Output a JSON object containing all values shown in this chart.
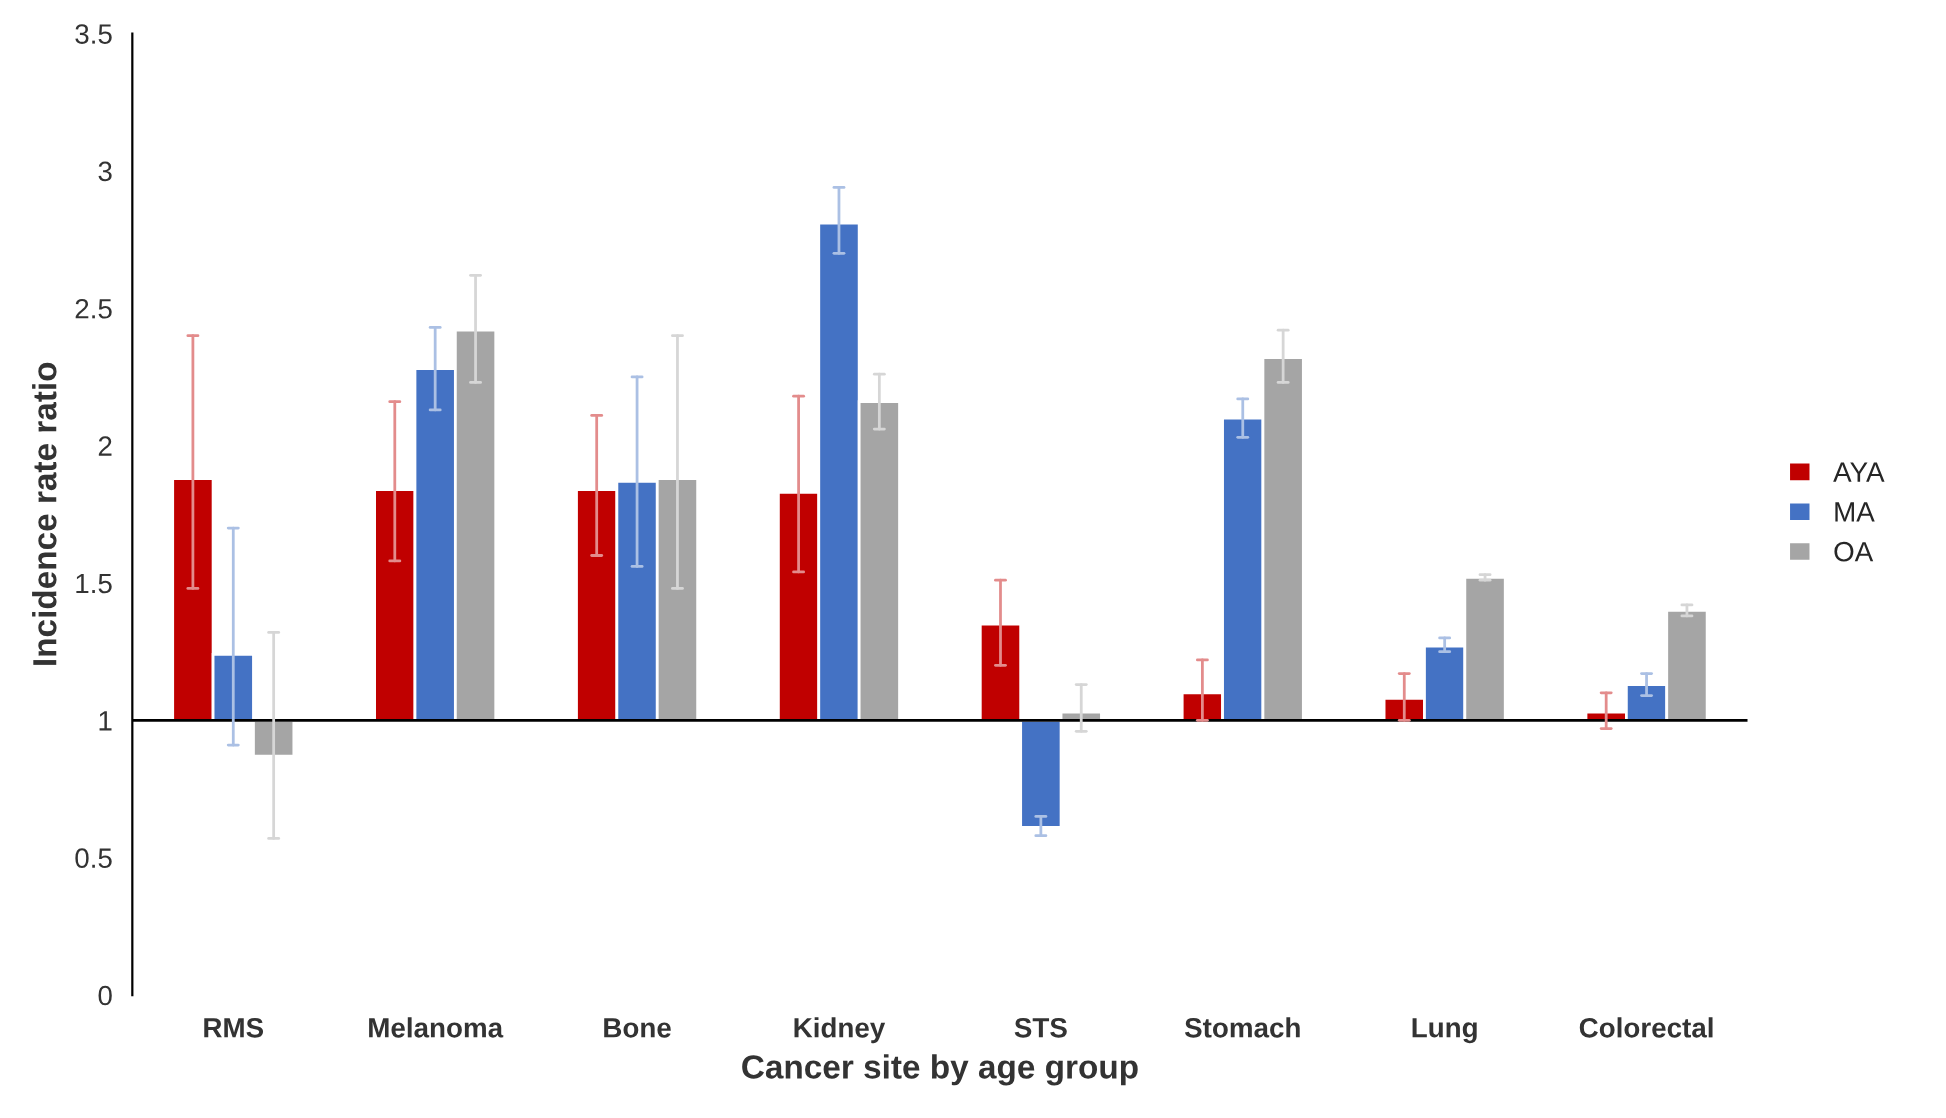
{
  "chart_data": {
    "type": "bar",
    "xlabel": "Cancer site by age group",
    "ylabel": "Incidence rate ratio",
    "categories": [
      "RMS",
      "Melanoma",
      "Bone",
      "Kidney",
      "STS",
      "Stomach",
      "Lung",
      "Colorectal"
    ],
    "ref_lines": [
      {
        "axis": "y",
        "value": 1,
        "color": "#000000"
      }
    ],
    "series": [
      {
        "name": "AYA",
        "color": "#c00000",
        "base": [
          1,
          1,
          1,
          1,
          1,
          1,
          1,
          1
        ],
        "values": [
          0.88,
          0.84,
          0.84,
          0.83,
          0.35,
          0.1,
          0.08,
          0.03
        ],
        "errors": [
          [
            1.48,
            2.4
          ],
          [
            1.58,
            2.16
          ],
          [
            1.6,
            2.11
          ],
          [
            1.54,
            2.18
          ],
          [
            1.2,
            1.51
          ],
          [
            1.0,
            1.22
          ],
          [
            1.0,
            1.17
          ],
          [
            0.97,
            1.1
          ]
        ]
      },
      {
        "name": "MA",
        "color": "#4472c4",
        "base": [
          1,
          1,
          1,
          1,
          1,
          1,
          1,
          1
        ],
        "values": [
          0.24,
          1.28,
          0.87,
          1.81,
          -0.39,
          1.1,
          0.27,
          0.13
        ],
        "errors": [
          [
            0.91,
            1.7
          ],
          [
            2.13,
            2.43
          ],
          [
            1.56,
            2.25
          ],
          [
            2.7,
            2.94
          ],
          [
            0.58,
            0.65
          ],
          [
            2.03,
            2.17
          ],
          [
            1.25,
            1.3
          ],
          [
            1.09,
            1.17
          ]
        ]
      },
      {
        "name": "OA",
        "color": "#a5a5a5",
        "base": [
          1,
          1,
          1,
          1,
          1,
          1,
          1,
          1
        ],
        "values": [
          -0.13,
          1.42,
          0.88,
          1.16,
          0.03,
          1.32,
          0.52,
          0.4
        ],
        "errors": [
          [
            0.57,
            1.32
          ],
          [
            2.23,
            2.62
          ],
          [
            1.48,
            2.4
          ],
          [
            2.06,
            2.26
          ],
          [
            0.96,
            1.13
          ],
          [
            2.23,
            2.42
          ],
          [
            1.51,
            1.53
          ],
          [
            1.38,
            1.42
          ]
        ]
      }
    ],
    "ylim": [
      0,
      3.5
    ],
    "yticks": [
      0,
      0.5,
      1,
      1.5,
      2,
      2.5,
      3,
      3.5
    ],
    "grid": false,
    "legend": "right"
  }
}
